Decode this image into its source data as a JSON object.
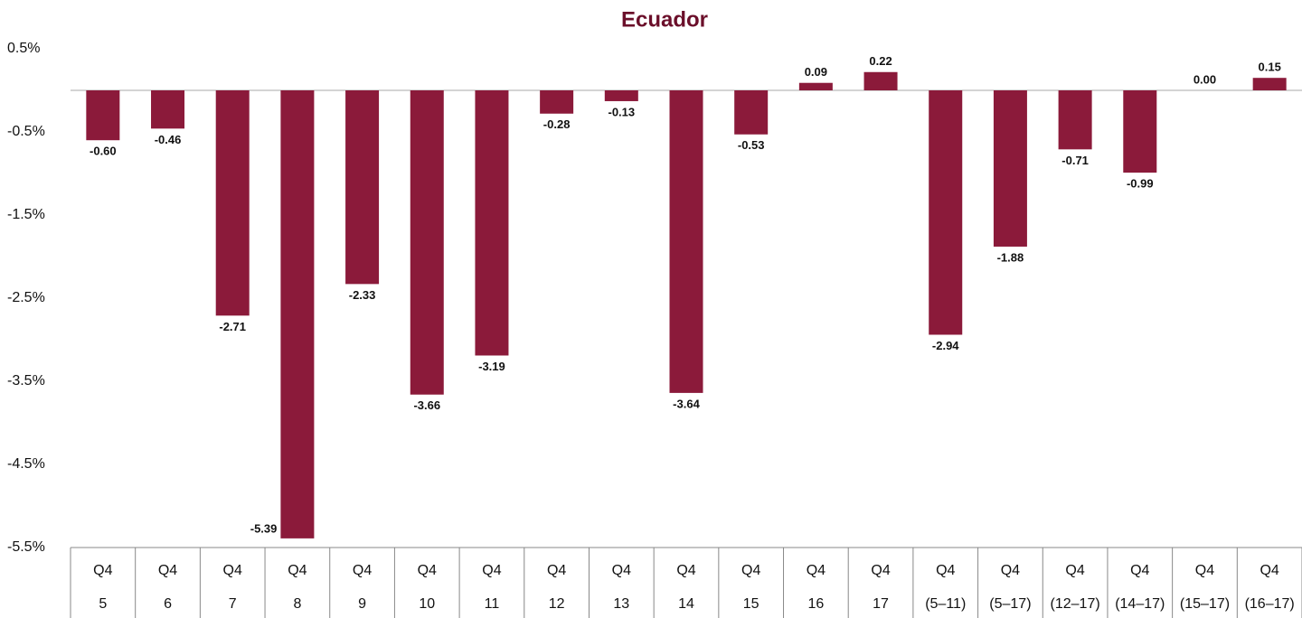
{
  "chart_data": {
    "type": "bar",
    "title": "Ecuador",
    "categories": [
      [
        "Q4",
        "5"
      ],
      [
        "Q4",
        "6"
      ],
      [
        "Q4",
        "7"
      ],
      [
        "Q4",
        "8"
      ],
      [
        "Q4",
        "9"
      ],
      [
        "Q4",
        "10"
      ],
      [
        "Q4",
        "11"
      ],
      [
        "Q4",
        "12"
      ],
      [
        "Q4",
        "13"
      ],
      [
        "Q4",
        "14"
      ],
      [
        "Q4",
        "15"
      ],
      [
        "Q4",
        "16"
      ],
      [
        "Q4",
        "17"
      ],
      [
        "Q4",
        "(5–11)"
      ],
      [
        "Q4",
        "(5–17)"
      ],
      [
        "Q4",
        "(12–17)"
      ],
      [
        "Q4",
        "(14–17)"
      ],
      [
        "Q4",
        "(15–17)"
      ],
      [
        "Q4",
        "(16–17)"
      ]
    ],
    "values": [
      -0.6,
      -0.46,
      -2.71,
      -5.39,
      -2.33,
      -3.66,
      -3.19,
      -0.28,
      -0.13,
      -3.64,
      -0.53,
      0.09,
      0.22,
      -2.94,
      -1.88,
      -0.71,
      -0.99,
      0.0,
      0.15
    ],
    "value_labels": [
      "-0.60",
      "-0.46",
      "-2.71",
      "-5.39",
      "-2.33",
      "-3.66",
      "-3.19",
      "-0.28",
      "-0.13",
      "-3.64",
      "-0.53",
      "0.09",
      "0.22",
      "-2.94",
      "-1.88",
      "-0.71",
      "-0.99",
      "0.00",
      "0.15"
    ],
    "color": "#8b1a3a",
    "ylim": [
      -5.5,
      0.5
    ],
    "yticks": [
      {
        "value": 0.5,
        "label": "0.5%"
      },
      {
        "value": -0.5,
        "label": "-0.5%"
      },
      {
        "value": -1.5,
        "label": "-1.5%"
      },
      {
        "value": -2.5,
        "label": "-2.5%"
      },
      {
        "value": -3.5,
        "label": "-3.5%"
      },
      {
        "value": -4.5,
        "label": "-4.5%"
      },
      {
        "value": -5.5,
        "label": "-5.5%"
      }
    ],
    "grid": false
  }
}
